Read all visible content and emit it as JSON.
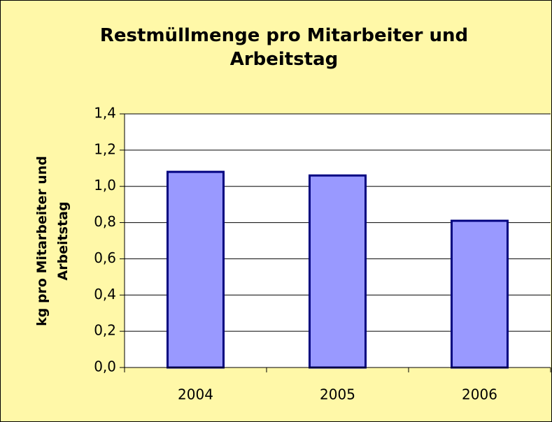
{
  "chart_data": {
    "type": "bar",
    "title": "Restmüllmenge pro Mitarbeiter und Arbeitstag",
    "y_label": "kg pro Mitarbeiter und Arbeitstag",
    "categories": [
      "2004",
      "2005",
      "2006"
    ],
    "values": [
      1.08,
      1.06,
      0.81
    ],
    "color": "#9999ff",
    "ylim": [
      0,
      1.4
    ],
    "yticks": [
      {
        "value": 0,
        "label": "0,0"
      },
      {
        "value": 0.2,
        "label": "0,2"
      },
      {
        "value": 0.4,
        "label": "0,4"
      },
      {
        "value": 0.6,
        "label": "0,6"
      },
      {
        "value": 0.8,
        "label": "0,8"
      },
      {
        "value": 1.0,
        "label": "1,0"
      },
      {
        "value": 1.2,
        "label": "1,2"
      },
      {
        "value": 1.4,
        "label": "1,4"
      }
    ],
    "grid": true
  }
}
